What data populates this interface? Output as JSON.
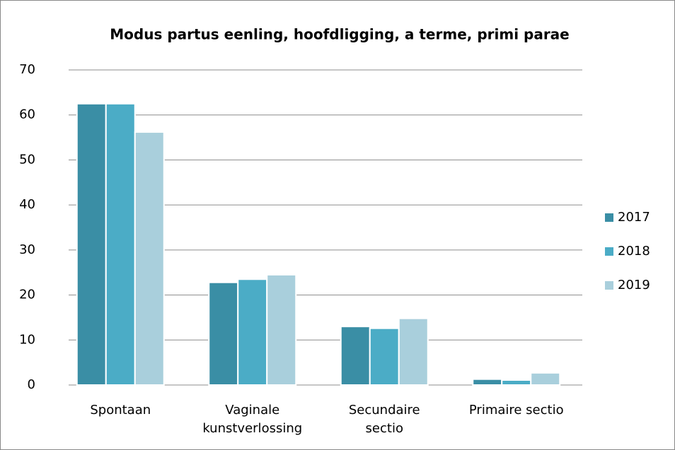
{
  "chart_data": {
    "type": "bar",
    "title": "Modus partus eenling, hoofdligging, a terme, primi parae",
    "categories": [
      "Spontaan",
      "Vaginale kunstverlossing",
      "Secundaire sectio",
      "Primaire sectio"
    ],
    "series": [
      {
        "name": "2017",
        "color": "#3a8ea5",
        "values": [
          62.5,
          22.8,
          13.0,
          1.3
        ]
      },
      {
        "name": "2018",
        "color": "#4bacc6",
        "values": [
          62.5,
          23.5,
          12.6,
          1.1
        ]
      },
      {
        "name": "2019",
        "color": "#a9cfdc",
        "values": [
          56.2,
          24.5,
          14.8,
          2.7
        ]
      }
    ],
    "ylim": [
      0,
      70
    ],
    "yticks": [
      0,
      10,
      20,
      30,
      40,
      50,
      60,
      70
    ],
    "grid": true,
    "legend": "right"
  }
}
